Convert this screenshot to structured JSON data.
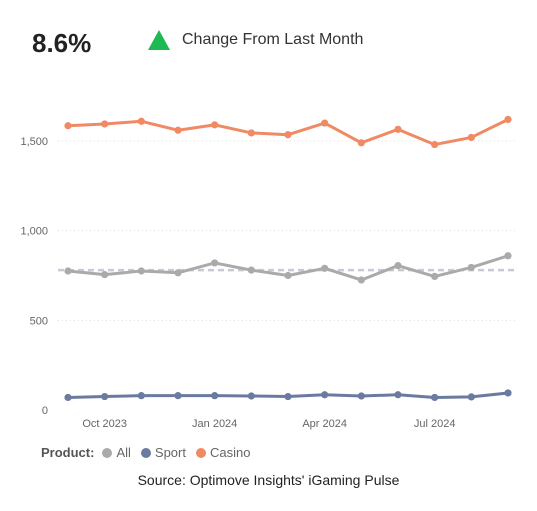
{
  "kpi": {
    "value": "8.6%",
    "trend_icon": "triangle-up-icon",
    "trend_color": "#1db954",
    "label": "Change From Last Month"
  },
  "legend": {
    "title": "Product:",
    "items": [
      {
        "label": "All",
        "color": "#aaaaaa"
      },
      {
        "label": "Sport",
        "color": "#6b7a9f"
      },
      {
        "label": "Casino",
        "color": "#f08a64"
      }
    ]
  },
  "source": "Source: Optimove Insights' iGaming Pulse",
  "chart_data": {
    "type": "line",
    "x": [
      "2023-09",
      "2023-10",
      "2023-11",
      "2023-12",
      "2024-01",
      "2024-02",
      "2024-03",
      "2024-04",
      "2024-05",
      "2024-06",
      "2024-07",
      "2024-08",
      "2024-09"
    ],
    "x_ticks": [
      {
        "x": "2023-10",
        "label": "Oct 2023"
      },
      {
        "x": "2024-01",
        "label": "Jan 2024"
      },
      {
        "x": "2024-04",
        "label": "Apr 2024"
      },
      {
        "x": "2024-07",
        "label": "Jul 2024"
      }
    ],
    "y_ticks": [
      0,
      500,
      1000,
      1500
    ],
    "y_tick_labels": [
      "0",
      "500",
      "1,000",
      "1,500"
    ],
    "ylim": [
      0,
      1650
    ],
    "grid": "horizontal dotted",
    "legend_position": "bottom-left",
    "series": [
      {
        "name": "All",
        "color": "#aaaaaa",
        "values": [
          775,
          755,
          775,
          765,
          820,
          780,
          750,
          790,
          725,
          805,
          745,
          795,
          860
        ]
      },
      {
        "name": "Sport",
        "color": "#6b7a9f",
        "values": [
          70,
          75,
          80,
          80,
          80,
          78,
          75,
          85,
          78,
          85,
          70,
          73,
          95
        ]
      },
      {
        "name": "Casino",
        "color": "#f08a64",
        "values": [
          1585,
          1595,
          1610,
          1560,
          1590,
          1545,
          1535,
          1600,
          1490,
          1565,
          1480,
          1520,
          1620
        ]
      }
    ],
    "reference_line": {
      "value": 780,
      "style": "dashed",
      "color": "#c5cad6"
    }
  }
}
